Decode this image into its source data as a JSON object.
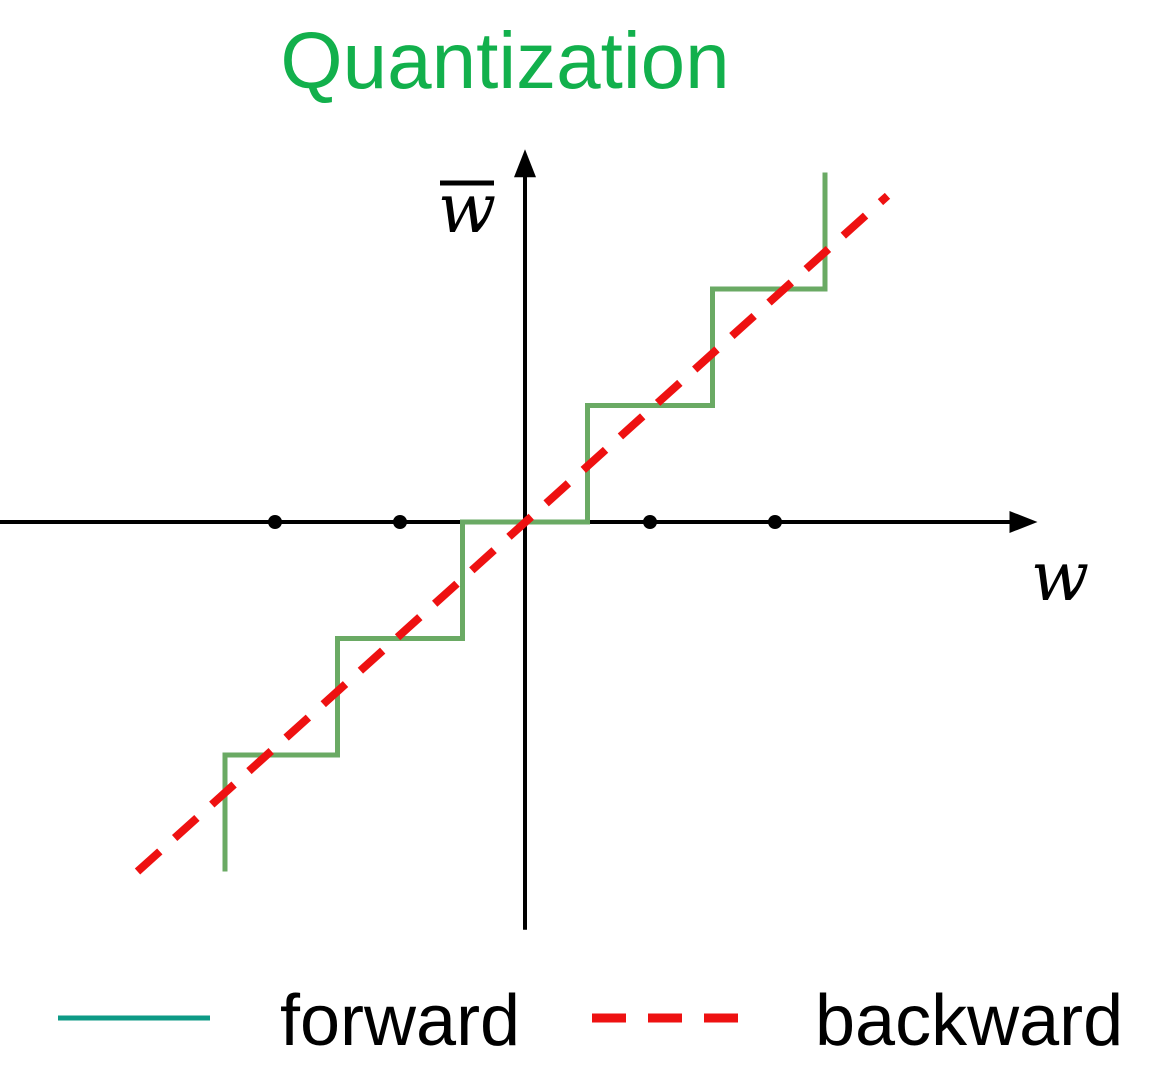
{
  "title": "Quantization",
  "axes": {
    "x_label": "w",
    "y_label": "w",
    "y_label_overbar": true
  },
  "legend": {
    "forward_label": "forward",
    "backward_label": "backward"
  },
  "colors": {
    "title": "#12b04c",
    "forward_line": "#6aaa64",
    "forward_legend": "#0e9a86",
    "backward": "#ee1111",
    "axis": "#000000",
    "text": "#000000"
  },
  "chart_data": {
    "type": "line",
    "xlim": [
      -4.2,
      4.1
    ],
    "ylim": [
      -3.5,
      3.2
    ],
    "axis_marks": [
      -2,
      -1,
      1,
      2
    ],
    "series": [
      {
        "name": "forward",
        "style": "solid",
        "x": [
          -2.4,
          -2.4,
          -1.5,
          -1.5,
          -0.5,
          -0.5,
          0.5,
          0.5,
          1.5,
          1.5,
          2.4,
          2.4
        ],
        "y": [
          -3,
          -2,
          -2,
          -1,
          -1,
          0,
          0,
          1,
          1,
          2,
          2,
          3
        ]
      },
      {
        "name": "backward",
        "style": "dashed",
        "x": [
          -3.1,
          2.9
        ],
        "y": [
          -3,
          2.8
        ]
      }
    ]
  }
}
